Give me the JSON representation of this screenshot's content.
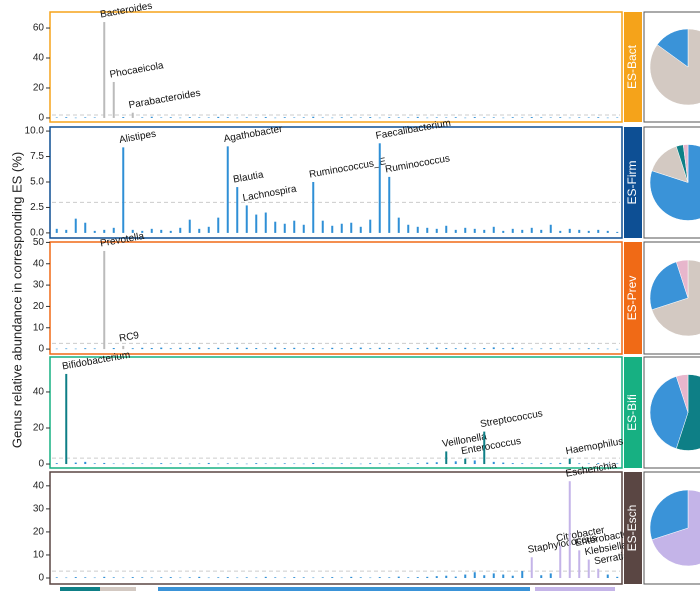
{
  "ylabel": "Genus relative abundance in corresponding ES (%)",
  "chart_data": [
    {
      "type": "bar",
      "panel_label": "ES-Bact",
      "frame_color": "#f5a31a",
      "color": "#2f8fd6",
      "label_color": "#bbbbbb",
      "ylim": [
        -2.7,
        70.7
      ],
      "yticks": [
        0,
        20,
        40,
        60
      ],
      "reference_line": 2,
      "categories": [
        null,
        null,
        null,
        null,
        null,
        "Bacteroides",
        "Phocaeicola",
        null,
        "Parabacteroides",
        null,
        null,
        null,
        null,
        null,
        null,
        null,
        null,
        null,
        null,
        null,
        null,
        null,
        null,
        null,
        null,
        null,
        null,
        null,
        null,
        null,
        null,
        null,
        null,
        null,
        null,
        null,
        null,
        null,
        null,
        null,
        null,
        null,
        null,
        null,
        null,
        null,
        null,
        null,
        null,
        null,
        null,
        null,
        null,
        null,
        null,
        null,
        null,
        null,
        null,
        null
      ],
      "values": [
        0.3,
        0.5,
        0.2,
        0.4,
        0.3,
        64,
        24,
        0.6,
        3.5,
        0.4,
        0.8,
        0.3,
        0.5,
        0.2,
        0.6,
        0.4,
        0.3,
        0.7,
        0.5,
        0.2,
        0.4,
        0.3,
        0.6,
        0.2,
        0.5,
        0.3,
        0.4,
        0.8,
        0.3,
        0.2,
        0.5,
        0.4,
        0.3,
        0.6,
        0.2,
        0.5,
        0.4,
        0.3,
        0.7,
        0.2,
        0.4,
        0.3,
        0.5,
        0.2,
        0.6,
        0.3,
        0.4,
        0.2,
        0.5,
        0.3,
        0.6,
        0.4,
        0.3,
        0.5,
        0.2,
        0.4,
        0.3,
        0.5,
        0.2,
        0.3
      ],
      "pie": {
        "values": [
          85,
          15
        ],
        "colors": [
          "#d3c9c2",
          "#3a93d8"
        ]
      }
    },
    {
      "type": "bar",
      "panel_label": "ES-Firm",
      "frame_color": "#0d4f94",
      "color": "#2f8fd6",
      "label_color": "#2f8fd6",
      "ylim": [
        -0.5,
        10.4
      ],
      "yticks": [
        {
          "value": 0,
          "label": "0.0"
        },
        2.5,
        {
          "value": 5,
          "label": "5.0"
        },
        7.5,
        {
          "value": 10,
          "label": "10.0"
        }
      ],
      "reference_line": 3,
      "categories": [
        null,
        null,
        null,
        null,
        null,
        null,
        null,
        "Alistipes",
        null,
        null,
        null,
        null,
        null,
        null,
        null,
        null,
        null,
        null,
        "Agathobacter",
        "Blautia",
        "Lachnospira",
        null,
        null,
        null,
        null,
        null,
        null,
        "Ruminococcus_E",
        null,
        null,
        null,
        null,
        null,
        null,
        "Faecalibacterium",
        "Ruminococcus",
        null,
        null,
        null,
        null,
        null,
        null,
        null,
        null,
        null,
        null,
        null,
        null,
        null,
        null,
        null,
        null,
        null,
        null,
        null,
        null,
        null,
        null,
        null,
        null
      ],
      "values": [
        0.4,
        0.3,
        1.4,
        1.0,
        0.2,
        0.3,
        0.5,
        8.4,
        0.3,
        0.2,
        0.4,
        0.3,
        0.2,
        0.5,
        1.3,
        0.4,
        0.6,
        1.5,
        8.5,
        4.5,
        2.7,
        1.8,
        2.0,
        1.1,
        0.9,
        1.2,
        0.8,
        5.0,
        1.2,
        0.7,
        0.9,
        1.0,
        0.6,
        1.3,
        8.8,
        5.5,
        1.5,
        0.8,
        0.6,
        0.5,
        0.4,
        0.7,
        0.3,
        0.5,
        0.4,
        0.3,
        0.6,
        0.2,
        0.4,
        0.3,
        0.5,
        0.3,
        0.8,
        0.2,
        0.4,
        0.3,
        0.2,
        0.3,
        0.2,
        0.1
      ],
      "pie": {
        "values": [
          80,
          15,
          3,
          2
        ],
        "colors": [
          "#3a93d8",
          "#d3c9c2",
          "#0e7f86",
          "#e7b6cc"
        ]
      }
    },
    {
      "type": "bar",
      "panel_label": "ES-Prev",
      "frame_color": "#f06a16",
      "color": "#2f8fd6",
      "label_color": "#bbbbbb",
      "ylim": [
        -2.3,
        50.2
      ],
      "yticks": [
        0,
        10,
        20,
        30,
        40,
        50
      ],
      "reference_line": 2.7,
      "categories": [
        null,
        null,
        null,
        null,
        null,
        "Prevotella",
        null,
        "RC9",
        null,
        null,
        null,
        null,
        null,
        null,
        null,
        null,
        null,
        null,
        null,
        null,
        null,
        null,
        null,
        null,
        null,
        null,
        null,
        null,
        null,
        null,
        null,
        null,
        null,
        null,
        null,
        null,
        null,
        null,
        null,
        null,
        null,
        null,
        null,
        null,
        null,
        null,
        null,
        null,
        null,
        null,
        null,
        null,
        null,
        null,
        null,
        null,
        null,
        null,
        null,
        null
      ],
      "values": [
        0.2,
        0.3,
        0.2,
        0.4,
        0.3,
        46,
        0.5,
        1.5,
        0.4,
        0.6,
        0.5,
        0.7,
        0.4,
        0.6,
        0.5,
        0.8,
        0.4,
        0.6,
        0.5,
        0.7,
        0.6,
        0.5,
        0.4,
        0.7,
        0.5,
        0.6,
        0.4,
        0.5,
        0.3,
        0.6,
        0.4,
        0.5,
        0.7,
        0.4,
        0.6,
        0.5,
        0.3,
        0.5,
        0.4,
        0.6,
        0.7,
        0.5,
        0.4,
        0.6,
        0.3,
        0.5,
        0.8,
        0.4,
        0.6,
        0.3,
        0.2,
        0.3,
        0.4,
        0.2,
        0.3,
        0.2,
        0.4,
        0.3,
        0.2,
        0.1
      ],
      "pie": {
        "values": [
          70,
          25,
          5
        ],
        "colors": [
          "#d3c9c2",
          "#3a93d8",
          "#e7b6cc"
        ]
      }
    },
    {
      "type": "bar",
      "panel_label": "ES-Bifi",
      "frame_color": "#17b082",
      "color": "#2f8fd6",
      "label_color": "#0e7f86",
      "ylim": [
        -2.2,
        59.4
      ],
      "yticks": [
        0,
        20,
        40
      ],
      "reference_line": 3.3,
      "categories": [
        null,
        "Bifidobacterium",
        null,
        null,
        null,
        null,
        null,
        null,
        null,
        null,
        null,
        null,
        null,
        null,
        null,
        null,
        null,
        null,
        null,
        null,
        null,
        null,
        null,
        null,
        null,
        null,
        null,
        null,
        null,
        null,
        null,
        null,
        null,
        null,
        null,
        null,
        null,
        null,
        null,
        null,
        null,
        "Veillonella",
        null,
        "Enterococcus",
        null,
        "Streptococcus",
        null,
        null,
        null,
        null,
        null,
        null,
        null,
        null,
        "Haemophilus",
        null,
        null,
        null,
        null,
        null
      ],
      "values": [
        0.5,
        50,
        0.8,
        1.2,
        0.4,
        0.6,
        0.3,
        0.2,
        0.4,
        0.3,
        0.2,
        0.5,
        0.3,
        0.4,
        0.2,
        0.3,
        0.6,
        0.2,
        0.4,
        0.3,
        0.2,
        0.5,
        0.3,
        0.2,
        0.4,
        0.3,
        0.2,
        0.6,
        0.3,
        0.2,
        0.4,
        0.3,
        0.2,
        0.5,
        0.3,
        0.2,
        0.4,
        0.3,
        0.5,
        0.8,
        1.0,
        7,
        1.5,
        3,
        2.0,
        18,
        1.2,
        0.8,
        0.5,
        0.4,
        0.3,
        0.5,
        0.4,
        0.6,
        3,
        0.4,
        0.3,
        0.5,
        0.2,
        0.3
      ],
      "pie": {
        "values": [
          55,
          40,
          5
        ],
        "colors": [
          "#0e7f86",
          "#3a93d8",
          "#e7b6cc"
        ]
      }
    },
    {
      "type": "bar",
      "panel_label": "ES-Esch",
      "frame_color": "#5a4643",
      "color": "#2f8fd6",
      "label_color": "#c4b4e8",
      "ylim": [
        -2.6,
        46
      ],
      "yticks": [
        0,
        10,
        20,
        30,
        40
      ],
      "reference_line": 3,
      "categories": [
        null,
        null,
        null,
        null,
        null,
        null,
        null,
        null,
        null,
        null,
        null,
        null,
        null,
        null,
        null,
        null,
        null,
        null,
        null,
        null,
        null,
        null,
        null,
        null,
        null,
        null,
        null,
        null,
        null,
        null,
        null,
        null,
        null,
        null,
        null,
        null,
        null,
        null,
        null,
        null,
        null,
        null,
        null,
        null,
        null,
        null,
        null,
        null,
        null,
        null,
        "Staphylococcus",
        null,
        null,
        "Citrobacter",
        "Escherichia",
        "Enterobacter",
        "Klebsiella",
        "Serratia",
        null,
        null
      ],
      "values": [
        0.3,
        0.2,
        0.4,
        0.3,
        0.2,
        0.5,
        0.3,
        0.2,
        0.4,
        0.3,
        0.2,
        0.3,
        0.4,
        0.2,
        0.3,
        0.5,
        0.2,
        0.3,
        0.4,
        0.2,
        0.3,
        0.2,
        0.5,
        0.3,
        0.2,
        0.4,
        0.3,
        0.2,
        0.3,
        0.4,
        0.2,
        0.5,
        0.3,
        0.2,
        0.4,
        0.3,
        0.6,
        0.3,
        0.4,
        0.5,
        0.8,
        1.0,
        0.6,
        1.5,
        2.5,
        1.2,
        2.0,
        1.5,
        1.0,
        3.0,
        9,
        1.2,
        2.0,
        14,
        42,
        12,
        8,
        4,
        1.5,
        0.5
      ],
      "pie": {
        "values": [
          70,
          30
        ],
        "colors": [
          "#c4b4e8",
          "#3a93d8"
        ]
      }
    }
  ]
}
